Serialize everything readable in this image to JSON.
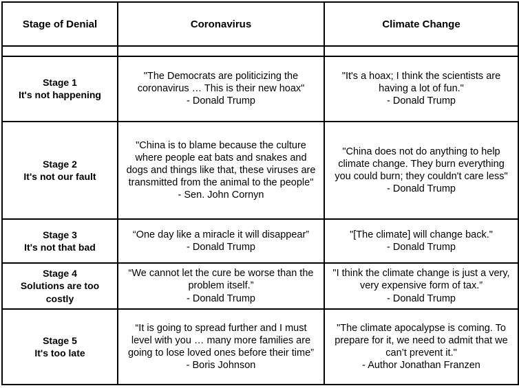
{
  "table": {
    "headers": [
      "Stage of Denial",
      "Coronavirus",
      "Climate Change"
    ],
    "rows": [
      {
        "stage": "Stage 1",
        "label": "It's not happening",
        "coronavirus_quote": "\"The Democrats are politicizing the coronavirus … This is their new hoax\"",
        "coronavirus_attribution": "- Donald Trump",
        "climate_quote": "\"It's a hoax; I think the scientists are having a lot of fun.\"",
        "climate_attribution": "- Donald Trump"
      },
      {
        "stage": "Stage 2",
        "label": "It's not our fault",
        "coronavirus_quote": "\"China is to blame because the culture where people eat bats and snakes and dogs and things like that, these viruses are transmitted from the animal to the people\"",
        "coronavirus_attribution": "- Sen. John Cornyn",
        "climate_quote": "\"China does not do anything to help climate change. They burn everything you could burn; they couldn't care less\"",
        "climate_attribution": "- Donald Trump"
      },
      {
        "stage": "Stage 3",
        "label": "It's not that bad",
        "coronavirus_quote": "“One day like a miracle it will disappear”",
        "coronavirus_attribution": "- Donald Trump",
        "climate_quote": "\"[The climate] will change back.\"",
        "climate_attribution": "- Donald Trump"
      },
      {
        "stage": "Stage 4",
        "label": "Solutions are too costly",
        "coronavirus_quote": "“We cannot let the cure be worse than the problem itself.”",
        "coronavirus_attribution": "- Donald Trump",
        "climate_quote": "\"I think the climate change is just a very, very expensive form of tax.”",
        "climate_attribution": "- Donald Trump"
      },
      {
        "stage": "Stage 5",
        "label": "It's too late",
        "coronavirus_quote": "“It is going to spread further and I must level with you … many more families are going to lose loved ones before their time”",
        "coronavirus_attribution": "- Boris Johnson",
        "climate_quote": "\"The climate apocalypse is coming. To prepare for it, we need to admit that we can’t prevent it.\"",
        "climate_attribution": "- Author Jonathan Franzen"
      }
    ]
  }
}
